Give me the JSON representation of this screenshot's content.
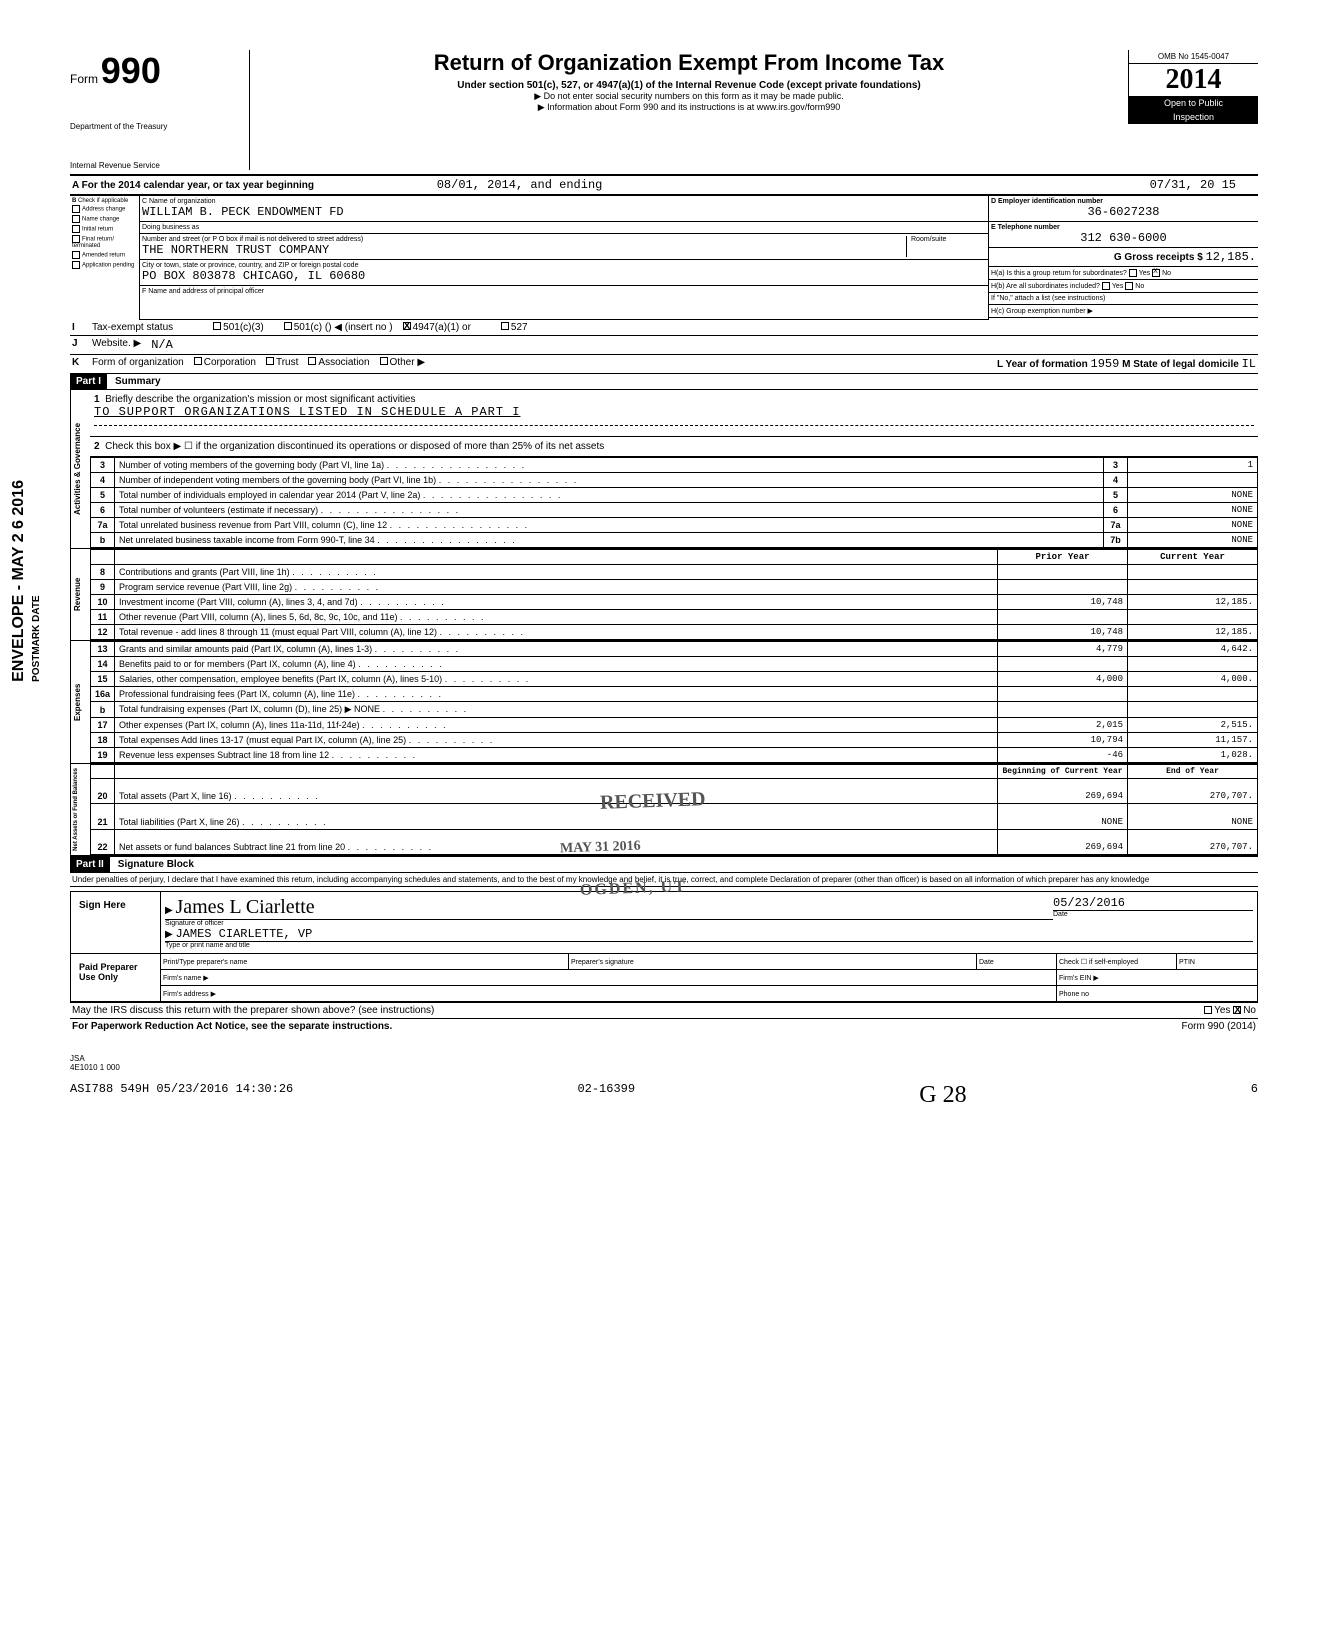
{
  "header": {
    "form_label": "Form",
    "form_number": "990",
    "dept": "Department of the Treasury",
    "irs": "Internal Revenue Service",
    "title": "Return of Organization Exempt From Income Tax",
    "subtitle": "Under section 501(c), 527, or 4947(a)(1) of the Internal Revenue Code (except private foundations)",
    "line2": "▶ Do not enter social security numbers on this form as it may be made public.",
    "line3": "▶ Information about Form 990 and its instructions is at www.irs.gov/form990",
    "omb": "OMB No 1545-0047",
    "year_prefix": "20",
    "year": "14",
    "open": "Open to Public",
    "inspection": "Inspection"
  },
  "period": {
    "line_a": "A For the 2014 calendar year, or tax year beginning",
    "begin": "08/01, 2014, and ending",
    "end": "07/31, 20 15"
  },
  "section_b": {
    "label": "B",
    "check": "Check if applicable",
    "items": [
      "Address change",
      "Name change",
      "Initial return",
      "Final return/ terminated",
      "Amended return",
      "Application pending"
    ]
  },
  "section_c": {
    "name_label": "C Name of organization",
    "name": "WILLIAM B. PECK ENDOWMENT FD",
    "dba_label": "Doing business as",
    "street_label": "Number and street (or P O box if mail is not delivered to street address)",
    "room_label": "Room/suite",
    "street": "THE NORTHERN TRUST COMPANY",
    "city_label": "City or town, state or province, country, and ZIP or foreign postal code",
    "city": "PO BOX   803878 CHICAGO, IL  60680",
    "f_label": "F Name and address of principal officer"
  },
  "section_d": {
    "ein_label": "D Employer identification number",
    "ein": "36-6027238",
    "phone_label": "E Telephone number",
    "phone": "312 630-6000",
    "g_label": "G  Gross receipts $",
    "g_val": "12,185.",
    "ha_label": "H(a) Is this a group return for subordinates?",
    "hb_label": "H(b) Are all subordinates included?",
    "yes": "Yes",
    "no": "No",
    "x": "X",
    "hno": "If \"No,\" attach a list (see instructions)",
    "hc_label": "H(c) Group exemption number ▶"
  },
  "line_i": {
    "label": "I",
    "tax": "Tax-exempt status",
    "c3": "501(c)(3)",
    "c": "501(c) (",
    "insert": ") ◀    (insert no )",
    "x": "X",
    "a1": "4947(a)(1) or",
    "527": "527"
  },
  "line_j": {
    "label": "J",
    "web": "Website. ▶",
    "val": "N/A"
  },
  "line_k": {
    "label": "K",
    "form": "Form of organization",
    "opts": [
      "Corporation",
      "Trust",
      "Association",
      "Other ▶"
    ],
    "l_label": "L Year of formation",
    "l_val": "1959",
    "m_label": "M State of legal domicile",
    "m_val": "IL"
  },
  "part1": {
    "hdr": "Part I",
    "title": "Summary",
    "line1": "Briefly describe the organization's mission or most significant activities",
    "mission": "TO SUPPORT ORGANIZATIONS LISTED IN SCHEDULE A PART I",
    "line2": "Check this box ▶ ☐ if the organization discontinued its operations or disposed of more than 25% of its net assets",
    "vert_gov": "Activities & Governance",
    "vert_rev": "Revenue",
    "vert_exp": "Expenses",
    "vert_net": "Net Assets or Fund Balances",
    "gov_lines": [
      {
        "n": "3",
        "d": "Number of voting members of the governing body (Part VI, line 1a)",
        "b": "3",
        "v": "1"
      },
      {
        "n": "4",
        "d": "Number of independent voting members of the governing body (Part VI, line 1b)",
        "b": "4",
        "v": ""
      },
      {
        "n": "5",
        "d": "Total number of individuals employed in calendar year 2014 (Part V, line 2a)",
        "b": "5",
        "v": "NONE"
      },
      {
        "n": "6",
        "d": "Total number of volunteers (estimate if necessary)",
        "b": "6",
        "v": "NONE"
      },
      {
        "n": "7a",
        "d": "Total unrelated business revenue from Part VIII, column (C), line 12",
        "b": "7a",
        "v": "NONE"
      },
      {
        "n": "b",
        "d": "Net unrelated business taxable income from Form 990-T, line 34",
        "b": "7b",
        "v": "NONE"
      }
    ],
    "col_prior": "Prior Year",
    "col_curr": "Current Year",
    "rev_lines": [
      {
        "n": "8",
        "d": "Contributions and grants (Part VIII, line 1h)",
        "p": "",
        "c": ""
      },
      {
        "n": "9",
        "d": "Program service revenue (Part VIII, line 2g)",
        "p": "",
        "c": ""
      },
      {
        "n": "10",
        "d": "Investment income (Part VIII, column (A), lines 3, 4, and 7d)",
        "p": "10,748",
        "c": "12,185."
      },
      {
        "n": "11",
        "d": "Other revenue (Part VIII, column (A), lines 5, 6d, 8c, 9c, 10c, and 11e)",
        "p": "",
        "c": ""
      },
      {
        "n": "12",
        "d": "Total revenue - add lines 8 through 11 (must equal Part VIII, column (A), line 12)",
        "p": "10,748",
        "c": "12,185."
      }
    ],
    "exp_lines": [
      {
        "n": "13",
        "d": "Grants and similar amounts paid (Part IX, column (A), lines 1-3)",
        "p": "4,779",
        "c": "4,642."
      },
      {
        "n": "14",
        "d": "Benefits paid to or for members (Part IX, column (A), line 4)",
        "p": "",
        "c": ""
      },
      {
        "n": "15",
        "d": "Salaries, other compensation, employee benefits (Part IX, column (A), lines 5-10)",
        "p": "4,000",
        "c": "4,000."
      },
      {
        "n": "16a",
        "d": "Professional fundraising fees (Part IX, column (A), line 11e)",
        "p": "",
        "c": ""
      },
      {
        "n": "b",
        "d": "Total fundraising expenses (Part IX, column (D), line 25) ▶            NONE",
        "p": "",
        "c": ""
      },
      {
        "n": "17",
        "d": "Other expenses (Part IX, column (A), lines 11a-11d, 11f-24e)",
        "p": "2,015",
        "c": "2,515."
      },
      {
        "n": "18",
        "d": "Total expenses Add lines 13-17 (must equal Part IX, column (A), line 25)",
        "p": "10,794",
        "c": "11,157."
      },
      {
        "n": "19",
        "d": "Revenue less expenses Subtract line 18 from line 12",
        "p": "-46",
        "c": "1,028."
      }
    ],
    "col_beg": "Beginning of Current Year",
    "col_end": "End of Year",
    "net_lines": [
      {
        "n": "20",
        "d": "Total assets (Part X, line 16)",
        "p": "269,694",
        "c": "270,707."
      },
      {
        "n": "21",
        "d": "Total liabilities (Part X, line 26)",
        "p": "NONE",
        "c": "NONE"
      },
      {
        "n": "22",
        "d": "Net assets or fund balances Subtract line 21 from line 20",
        "p": "269,694",
        "c": "270,707."
      }
    ]
  },
  "part2": {
    "hdr": "Part II",
    "title": "Signature Block",
    "perjury": "Under penalties of perjury, I declare that I have examined this return, including accompanying schedules and statements, and to the best of my knowledge and belief, it is true, correct, and complete Declaration of preparer (other than officer) is based on all information of which preparer has any knowledge",
    "sign_here": "Sign Here",
    "sig_cursive": "James L Ciarlette",
    "sig_label": "Signature of officer",
    "date": "05/23/2016",
    "date_label": "Date",
    "name": "JAMES CIARLETTE, VP",
    "name_label": "Type or print name and title",
    "paid": "Paid Preparer Use Only",
    "prep_name": "Print/Type preparer's name",
    "prep_sig": "Preparer's signature",
    "prep_date": "Date",
    "check": "Check ☐ if self-employed",
    "ptin": "PTIN",
    "firm_name": "Firm's name ▶",
    "firm_ein": "Firm's EIN ▶",
    "firm_addr": "Firm's address ▶",
    "phone": "Phone no",
    "may_irs": "May the IRS discuss this return with the preparer shown above? (see instructions)",
    "yes": "Yes",
    "no": "No",
    "x": "X"
  },
  "footer": {
    "pra": "For Paperwork Reduction Act Notice, see the separate instructions.",
    "form": "Form 990 (2014)",
    "jsa": "JSA",
    "code": "4E1010 1 000",
    "stamp": "ASI788 549H 05/23/2016 14:30:26",
    "id": "02-16399",
    "hand": "G 28",
    "page": "6"
  },
  "stamps": {
    "received": "RECEIVED",
    "date": "MAY 31 2016",
    "ogden": "OGDEN, UT",
    "side": "ENVELOPE - MAY 2 6 2016",
    "side2": "POSTMARK DATE"
  }
}
